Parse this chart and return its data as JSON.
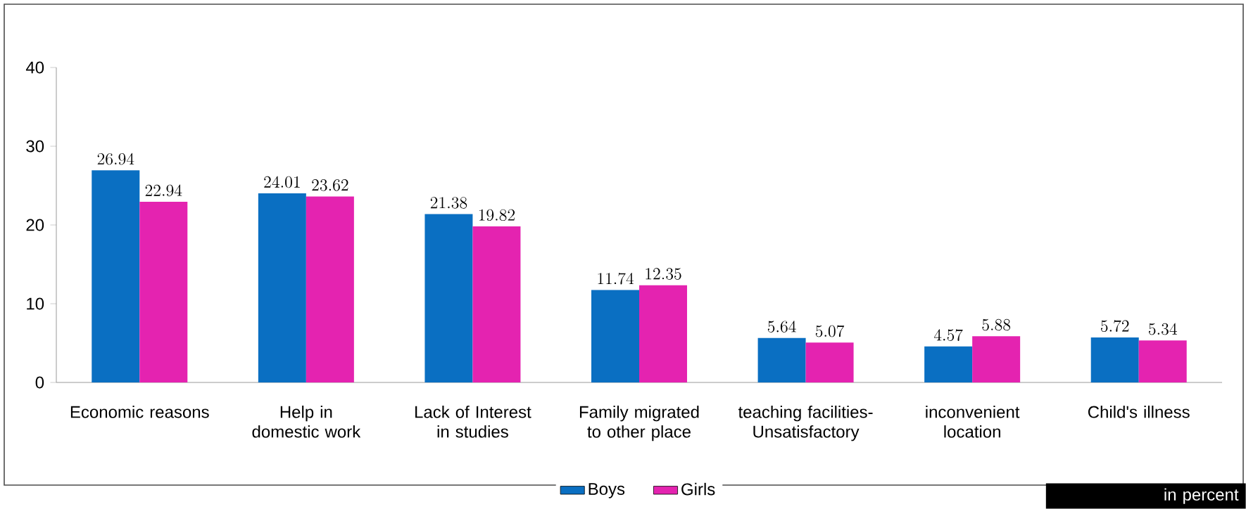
{
  "chart_data": {
    "type": "bar",
    "categories": [
      "Economic reasons",
      "Help in domestic work",
      "Lack of Interest in studies",
      "Family migrated to other place",
      "teaching facilities- Unsatisfactory",
      "inconvenient location",
      "Child's illness"
    ],
    "series": [
      {
        "name": "Boys",
        "color": "#0a6fc2",
        "values": [
          26.94,
          24.01,
          21.38,
          11.74,
          5.64,
          4.57,
          5.72
        ]
      },
      {
        "name": "Girls",
        "color": "#e423b0",
        "values": [
          22.94,
          23.62,
          19.82,
          12.35,
          5.07,
          5.88,
          5.34
        ]
      }
    ],
    "ylim": [
      0,
      40
    ],
    "yticks": [
      0,
      10,
      20,
      30,
      40
    ],
    "grid": false,
    "legend": "bottom",
    "data_labels": true,
    "annotations": [
      "in percent"
    ]
  }
}
